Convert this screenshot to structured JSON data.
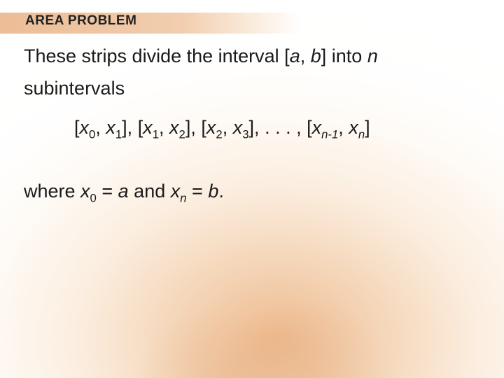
{
  "colors": {
    "text": "#1a1a1a",
    "bg_light": "#ffffff",
    "bg_peach1": "#fdeede",
    "bg_peach2": "#f4cfa9",
    "bg_peach3": "#ebb583",
    "band_start": "#ebb991",
    "band_end": "#fff8ee"
  },
  "typography": {
    "header_fontsize": 19,
    "body_fontsize": 27,
    "font_family": "Arial"
  },
  "header": {
    "title": "AREA PROBLEM"
  },
  "body": {
    "line1_a": "These strips divide the interval [",
    "line1_b": "a",
    "line1_c": ", ",
    "line1_d": "b",
    "line1_e": "] into ",
    "line1_f": "n",
    "line2": "subintervals",
    "formula": {
      "open": "[",
      "x": "x",
      "s0": "0",
      "s1": "1",
      "s2": "2",
      "s3": "3",
      "n": "n",
      "nm1": "n-1",
      "comma": ", ",
      "close": "]",
      "sep": ", ",
      "dots": ". . . "
    },
    "where": {
      "pre": "where ",
      "x": "x",
      "s0": "0",
      "eq1": " = ",
      "a": "a",
      "and": " and ",
      "sn": "n",
      "eq2": " = ",
      "b": "b",
      "dot": "."
    }
  }
}
